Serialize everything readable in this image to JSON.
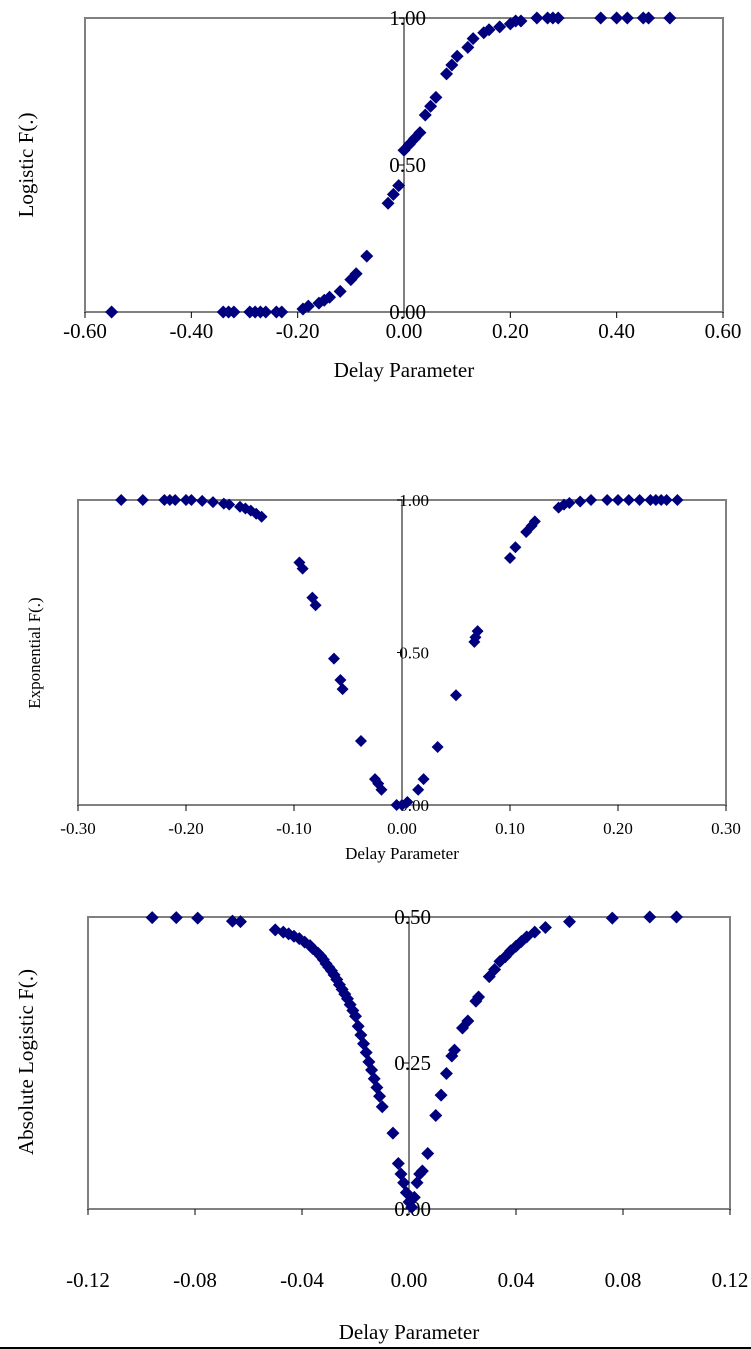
{
  "colors": {
    "marker": "#00007f",
    "frame": "#808080",
    "axis": "#000000"
  },
  "chart_data": [
    {
      "type": "scatter",
      "title": "",
      "xlabel": "Delay Parameter",
      "ylabel": "Logistic F(.)",
      "xlim": [
        -0.6,
        0.6
      ],
      "ylim": [
        0,
        1
      ],
      "xticks": [
        "-0.60",
        "-0.40",
        "-0.20",
        "0.00",
        "0.20",
        "0.40",
        "0.60"
      ],
      "yticks": [
        "0.00",
        "0.50",
        "1.00"
      ],
      "grid": false,
      "legend": "none",
      "marker": "diamond",
      "points": [
        [
          -0.55,
          0.0
        ],
        [
          -0.34,
          0.0
        ],
        [
          -0.33,
          0.0
        ],
        [
          -0.32,
          0.0
        ],
        [
          -0.29,
          0.0
        ],
        [
          -0.28,
          0.0
        ],
        [
          -0.27,
          0.0
        ],
        [
          -0.26,
          0.0
        ],
        [
          -0.24,
          0.0
        ],
        [
          -0.23,
          0.0
        ],
        [
          -0.19,
          0.01
        ],
        [
          -0.18,
          0.02
        ],
        [
          -0.16,
          0.03
        ],
        [
          -0.15,
          0.04
        ],
        [
          -0.14,
          0.05
        ],
        [
          -0.12,
          0.07
        ],
        [
          -0.1,
          0.11
        ],
        [
          -0.09,
          0.13
        ],
        [
          -0.07,
          0.19
        ],
        [
          -0.03,
          0.37
        ],
        [
          -0.02,
          0.4
        ],
        [
          -0.01,
          0.43
        ],
        [
          0.0,
          0.55
        ],
        [
          0.01,
          0.57
        ],
        [
          0.02,
          0.59
        ],
        [
          0.03,
          0.61
        ],
        [
          0.04,
          0.67
        ],
        [
          0.05,
          0.7
        ],
        [
          0.06,
          0.73
        ],
        [
          0.08,
          0.81
        ],
        [
          0.09,
          0.84
        ],
        [
          0.1,
          0.87
        ],
        [
          0.12,
          0.9
        ],
        [
          0.13,
          0.93
        ],
        [
          0.15,
          0.95
        ],
        [
          0.16,
          0.96
        ],
        [
          0.18,
          0.97
        ],
        [
          0.2,
          0.98
        ],
        [
          0.21,
          0.99
        ],
        [
          0.22,
          0.99
        ],
        [
          0.25,
          1.0
        ],
        [
          0.27,
          1.0
        ],
        [
          0.28,
          1.0
        ],
        [
          0.29,
          1.0
        ],
        [
          0.37,
          1.0
        ],
        [
          0.4,
          1.0
        ],
        [
          0.42,
          1.0
        ],
        [
          0.45,
          1.0
        ],
        [
          0.46,
          1.0
        ],
        [
          0.5,
          1.0
        ]
      ]
    },
    {
      "type": "scatter",
      "title": "",
      "xlabel": "Delay Parameter",
      "ylabel": "Exponential F(.)",
      "xlim": [
        -0.3,
        0.3
      ],
      "ylim": [
        0,
        1
      ],
      "xticks": [
        "-0.30",
        "-0.20",
        "-0.10",
        "0.00",
        "0.10",
        "0.20",
        "0.30"
      ],
      "yticks": [
        "0.00",
        "0.50",
        "1.00"
      ],
      "grid": false,
      "legend": "none",
      "marker": "diamond",
      "points": [
        [
          -0.26,
          1.0
        ],
        [
          -0.24,
          1.0
        ],
        [
          -0.22,
          1.0
        ],
        [
          -0.215,
          1.0
        ],
        [
          -0.21,
          1.0
        ],
        [
          -0.2,
          1.0
        ],
        [
          -0.195,
          1.0
        ],
        [
          -0.185,
          0.997
        ],
        [
          -0.175,
          0.993
        ],
        [
          -0.165,
          0.988
        ],
        [
          -0.16,
          0.985
        ],
        [
          -0.15,
          0.978
        ],
        [
          -0.145,
          0.972
        ],
        [
          -0.14,
          0.965
        ],
        [
          -0.135,
          0.955
        ],
        [
          -0.13,
          0.945
        ],
        [
          -0.095,
          0.795
        ],
        [
          -0.092,
          0.775
        ],
        [
          -0.083,
          0.68
        ],
        [
          -0.08,
          0.655
        ],
        [
          -0.063,
          0.48
        ],
        [
          -0.057,
          0.41
        ],
        [
          -0.055,
          0.38
        ],
        [
          -0.038,
          0.21
        ],
        [
          -0.025,
          0.085
        ],
        [
          -0.022,
          0.07
        ],
        [
          -0.019,
          0.05
        ],
        [
          -0.005,
          0.0
        ],
        [
          0.0,
          0.0
        ],
        [
          0.005,
          0.01
        ],
        [
          0.015,
          0.05
        ],
        [
          0.02,
          0.085
        ],
        [
          0.033,
          0.19
        ],
        [
          0.05,
          0.36
        ],
        [
          0.067,
          0.535
        ],
        [
          0.068,
          0.55
        ],
        [
          0.07,
          0.57
        ],
        [
          0.1,
          0.81
        ],
        [
          0.105,
          0.845
        ],
        [
          0.115,
          0.895
        ],
        [
          0.12,
          0.915
        ],
        [
          0.123,
          0.93
        ],
        [
          0.145,
          0.975
        ],
        [
          0.15,
          0.985
        ],
        [
          0.155,
          0.99
        ],
        [
          0.165,
          0.995
        ],
        [
          0.175,
          1.0
        ],
        [
          0.19,
          1.0
        ],
        [
          0.2,
          1.0
        ],
        [
          0.21,
          1.0
        ],
        [
          0.22,
          1.0
        ],
        [
          0.23,
          1.0
        ],
        [
          0.235,
          1.0
        ],
        [
          0.24,
          1.0
        ],
        [
          0.245,
          1.0
        ],
        [
          0.255,
          1.0
        ]
      ]
    },
    {
      "type": "scatter",
      "title": "",
      "xlabel": "Delay Parameter",
      "ylabel": "Absolute Logistic F(.)",
      "xlim": [
        -0.12,
        0.12
      ],
      "ylim": [
        0,
        0.5
      ],
      "xticks": [
        "-0.12",
        "-0.08",
        "-0.04",
        "0.00",
        "0.04",
        "0.08",
        "0.12"
      ],
      "yticks": [
        "0.00",
        "0.25",
        "0.50"
      ],
      "grid": false,
      "legend": "none",
      "marker": "diamond",
      "points": [
        [
          -0.096,
          0.499
        ],
        [
          -0.087,
          0.499
        ],
        [
          -0.079,
          0.498
        ],
        [
          -0.066,
          0.493
        ],
        [
          -0.063,
          0.492
        ],
        [
          -0.05,
          0.478
        ],
        [
          -0.047,
          0.474
        ],
        [
          -0.045,
          0.471
        ],
        [
          -0.043,
          0.467
        ],
        [
          -0.041,
          0.463
        ],
        [
          -0.039,
          0.457
        ],
        [
          -0.037,
          0.451
        ],
        [
          -0.036,
          0.446
        ],
        [
          -0.034,
          0.438
        ],
        [
          -0.033,
          0.433
        ],
        [
          -0.032,
          0.427
        ],
        [
          -0.031,
          0.42
        ],
        [
          -0.03,
          0.414
        ],
        [
          -0.029,
          0.408
        ],
        [
          -0.028,
          0.401
        ],
        [
          -0.027,
          0.393
        ],
        [
          -0.026,
          0.384
        ],
        [
          -0.025,
          0.376
        ],
        [
          -0.024,
          0.368
        ],
        [
          -0.023,
          0.36
        ],
        [
          -0.022,
          0.35
        ],
        [
          -0.021,
          0.34
        ],
        [
          -0.02,
          0.33
        ],
        [
          -0.019,
          0.313
        ],
        [
          -0.018,
          0.298
        ],
        [
          -0.017,
          0.283
        ],
        [
          -0.016,
          0.268
        ],
        [
          -0.015,
          0.252
        ],
        [
          -0.014,
          0.238
        ],
        [
          -0.013,
          0.223
        ],
        [
          -0.012,
          0.208
        ],
        [
          -0.011,
          0.193
        ],
        [
          -0.01,
          0.175
        ],
        [
          -0.006,
          0.13
        ],
        [
          -0.004,
          0.078
        ],
        [
          -0.003,
          0.06
        ],
        [
          -0.002,
          0.045
        ],
        [
          -0.001,
          0.028
        ],
        [
          0.0,
          0.012
        ],
        [
          0.001,
          0.003
        ],
        [
          0.002,
          0.02
        ],
        [
          0.003,
          0.045
        ],
        [
          0.004,
          0.06
        ],
        [
          0.005,
          0.065
        ],
        [
          0.007,
          0.095
        ],
        [
          0.01,
          0.16
        ],
        [
          0.012,
          0.195
        ],
        [
          0.014,
          0.232
        ],
        [
          0.016,
          0.262
        ],
        [
          0.017,
          0.272
        ],
        [
          0.02,
          0.31
        ],
        [
          0.022,
          0.322
        ],
        [
          0.025,
          0.356
        ],
        [
          0.026,
          0.363
        ],
        [
          0.03,
          0.398
        ],
        [
          0.032,
          0.41
        ],
        [
          0.034,
          0.424
        ],
        [
          0.036,
          0.432
        ],
        [
          0.038,
          0.442
        ],
        [
          0.04,
          0.45
        ],
        [
          0.042,
          0.458
        ],
        [
          0.044,
          0.466
        ],
        [
          0.047,
          0.474
        ],
        [
          0.051,
          0.482
        ],
        [
          0.06,
          0.492
        ],
        [
          0.076,
          0.498
        ],
        [
          0.09,
          0.5
        ],
        [
          0.1,
          0.5
        ]
      ]
    }
  ]
}
